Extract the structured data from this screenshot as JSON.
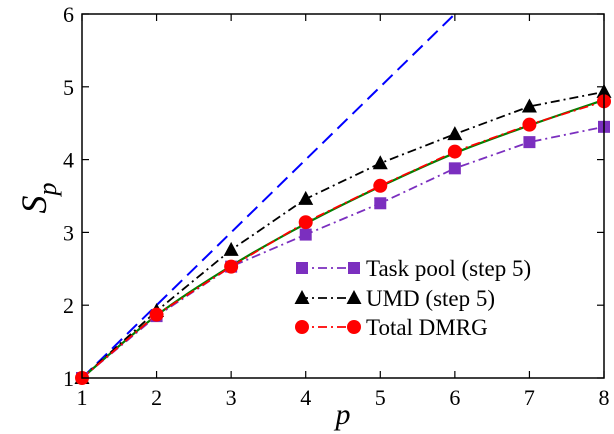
{
  "chart_data": {
    "type": "line",
    "xlabel": "p",
    "ylabel_main": "S",
    "ylabel_sub": "p",
    "xlim": [
      1,
      8
    ],
    "ylim": [
      1,
      6
    ],
    "xticks": [
      1,
      2,
      3,
      4,
      5,
      6,
      7,
      8
    ],
    "yticks": [
      1,
      2,
      3,
      4,
      5,
      6
    ],
    "legend_position": "lower-right",
    "series": [
      {
        "name": "Task pool (step 5)",
        "color": "#7b2fbf",
        "marker": "square",
        "dash": "dash-dot",
        "x": [
          1,
          2,
          3,
          4,
          5,
          6,
          7,
          8
        ],
        "values": [
          1.0,
          1.85,
          2.53,
          2.97,
          3.4,
          3.88,
          4.24,
          4.45
        ]
      },
      {
        "name": "UMD (step 5)",
        "color": "#000000",
        "marker": "triangle",
        "dash": "dash-dot",
        "x": [
          1,
          2,
          3,
          4,
          5,
          6,
          7,
          8
        ],
        "values": [
          1.0,
          1.92,
          2.76,
          3.46,
          3.95,
          4.35,
          4.73,
          4.93
        ]
      },
      {
        "name": "Total DMRG",
        "color": "#ff0000",
        "marker": "circle",
        "dash": "dash-dot",
        "x": [
          1,
          2,
          3,
          4,
          5,
          6,
          7,
          8
        ],
        "values": [
          1.0,
          1.87,
          2.53,
          3.14,
          3.64,
          4.11,
          4.48,
          4.8
        ]
      }
    ],
    "ideal_line": {
      "color": "#0000ff",
      "x": [
        1,
        6
      ],
      "values": [
        1,
        6
      ]
    },
    "fit_curve": {
      "color": "#008000",
      "x": [
        1,
        2,
        3,
        4,
        5,
        6,
        7,
        8
      ],
      "values": [
        1.0,
        1.86,
        2.54,
        3.12,
        3.63,
        4.09,
        4.47,
        4.82
      ]
    }
  }
}
